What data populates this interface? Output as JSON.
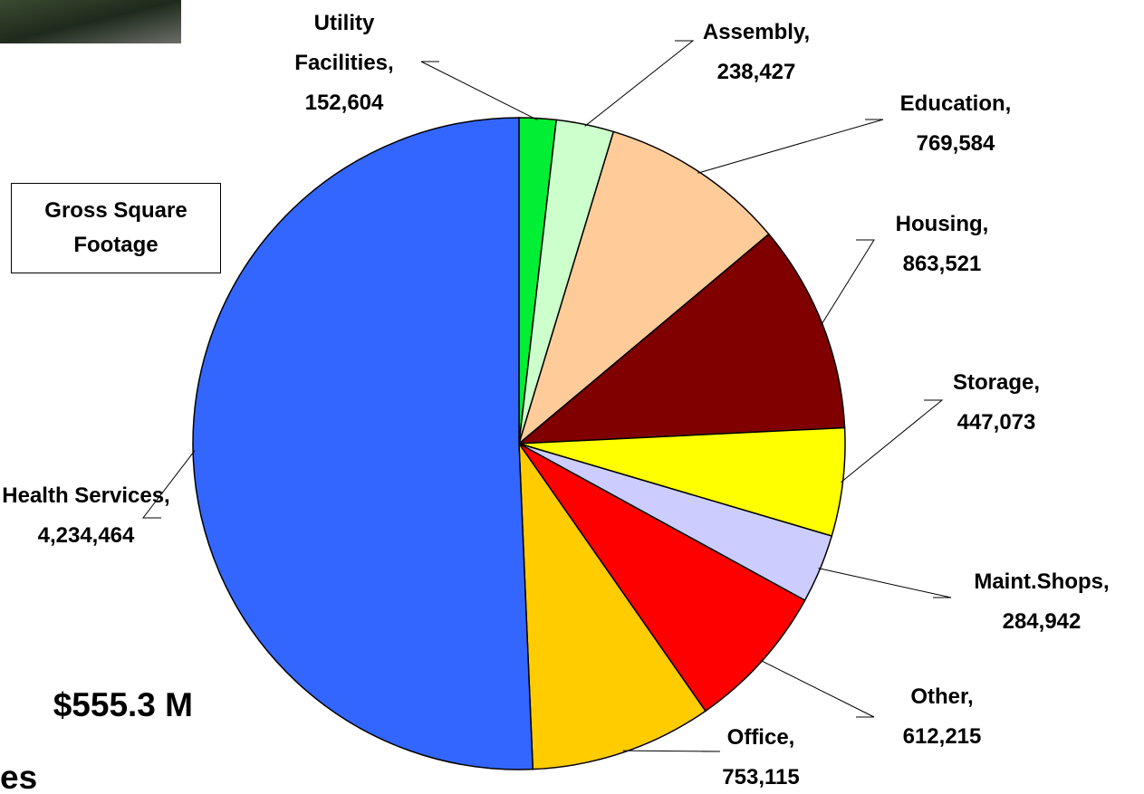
{
  "chart_data": {
    "type": "pie",
    "title": "Gross Square Footage",
    "categories": [
      "Utility Facilities,",
      "Assembly,",
      "Education,",
      "Housing,",
      "Storage,",
      "Maint.Shops,",
      "Other,",
      "Office,",
      "Health Services,"
    ],
    "values": [
      152604,
      238427,
      769584,
      863521,
      447073,
      284942,
      612215,
      753115,
      4234464
    ],
    "value_labels": [
      "152,604",
      "238,427",
      "769,584",
      "863,521",
      "447,073",
      "284,942",
      "612,215",
      "753,115",
      "4,234,464"
    ],
    "colors": [
      "#00ee33",
      "#ccffcc",
      "#ffcc99",
      "#800000",
      "#ffff00",
      "#ccccff",
      "#ff0000",
      "#ffcc00",
      "#3366ff"
    ],
    "annotations": [
      "$555.3 M",
      "es"
    ]
  }
}
